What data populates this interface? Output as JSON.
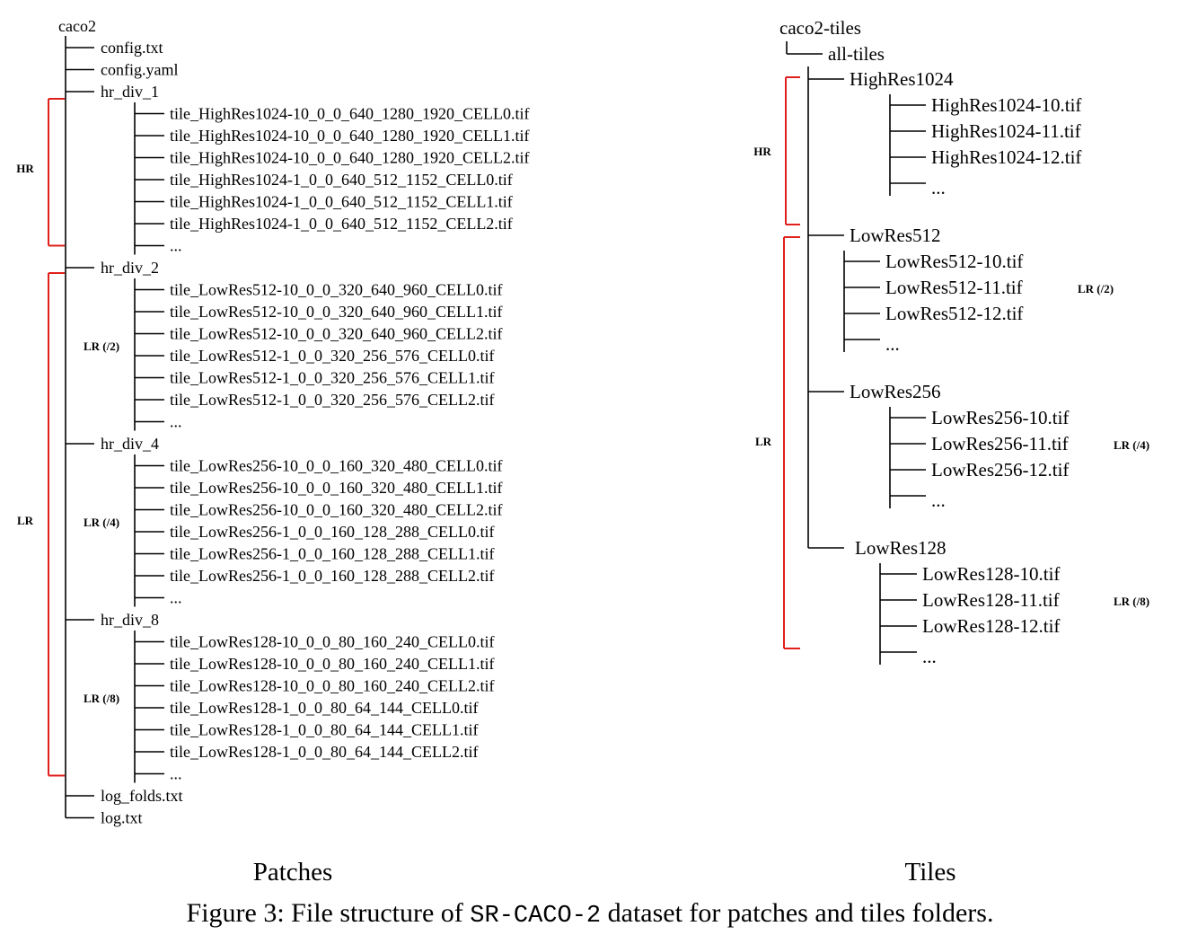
{
  "patches": {
    "root": "caco2",
    "items": [
      {
        "name": "config.txt",
        "type": "file"
      },
      {
        "name": "config.yaml",
        "type": "file"
      },
      {
        "name": "hr_div_1",
        "type": "folder",
        "children": [
          "tile_HighRes1024-10_0_0_640_1280_1920_CELL0.tif",
          "tile_HighRes1024-10_0_0_640_1280_1920_CELL1.tif",
          "tile_HighRes1024-10_0_0_640_1280_1920_CELL2.tif",
          "tile_HighRes1024-1_0_0_640_512_1152_CELL0.tif",
          "tile_HighRes1024-1_0_0_640_512_1152_CELL1.tif",
          "tile_HighRes1024-1_0_0_640_512_1152_CELL2.tif",
          "..."
        ]
      },
      {
        "name": "hr_div_2",
        "type": "folder",
        "label": "LR (/2)",
        "children": [
          "tile_LowRes512-10_0_0_320_640_960_CELL0.tif",
          "tile_LowRes512-10_0_0_320_640_960_CELL1.tif",
          "tile_LowRes512-10_0_0_320_640_960_CELL2.tif",
          "tile_LowRes512-1_0_0_320_256_576_CELL0.tif",
          "tile_LowRes512-1_0_0_320_256_576_CELL1.tif",
          "tile_LowRes512-1_0_0_320_256_576_CELL2.tif",
          "..."
        ]
      },
      {
        "name": "hr_div_4",
        "type": "folder",
        "label": "LR (/4)",
        "children": [
          "tile_LowRes256-10_0_0_160_320_480_CELL0.tif",
          "tile_LowRes256-10_0_0_160_320_480_CELL1.tif",
          "tile_LowRes256-10_0_0_160_320_480_CELL2.tif",
          "tile_LowRes256-1_0_0_160_128_288_CELL0.tif",
          "tile_LowRes256-1_0_0_160_128_288_CELL1.tif",
          "tile_LowRes256-1_0_0_160_128_288_CELL2.tif",
          "..."
        ]
      },
      {
        "name": "hr_div_8",
        "type": "folder",
        "label": "LR (/8)",
        "children": [
          "tile_LowRes128-10_0_0_80_160_240_CELL0.tif",
          "tile_LowRes128-10_0_0_80_160_240_CELL1.tif",
          "tile_LowRes128-10_0_0_80_160_240_CELL2.tif",
          "tile_LowRes128-1_0_0_80_64_144_CELL0.tif",
          "tile_LowRes128-1_0_0_80_64_144_CELL1.tif",
          "tile_LowRes128-1_0_0_80_64_144_CELL2.tif",
          "..."
        ]
      },
      {
        "name": "log_folds.txt",
        "type": "file"
      },
      {
        "name": "log.txt",
        "type": "file"
      }
    ],
    "hr_bracket_label": "HR",
    "lr_bracket_label": "LR",
    "caption": "Patches"
  },
  "tiles": {
    "root": "caco2-tiles",
    "subroot": "all-tiles",
    "folders": [
      {
        "name": "HighRes1024",
        "children": [
          "HighRes1024-10.tif",
          "HighRes1024-11.tif",
          "HighRes1024-12.tif",
          "..."
        ]
      },
      {
        "name": "LowRes512",
        "label": "LR (/2)",
        "children": [
          "LowRes512-10.tif",
          "LowRes512-11.tif",
          "LowRes512-12.tif",
          "..."
        ]
      },
      {
        "name": "LowRes256",
        "label": "LR (/4)",
        "children": [
          "LowRes256-10.tif",
          "LowRes256-11.tif",
          "LowRes256-12.tif",
          "..."
        ]
      },
      {
        "name": "LowRes128",
        "label": "LR (/8)",
        "children": [
          "LowRes128-10.tif",
          "LowRes128-11.tif",
          "LowRes128-12.tif",
          "..."
        ]
      }
    ],
    "hr_bracket_label": "HR",
    "lr_bracket_label": "LR",
    "caption": "Tiles"
  },
  "figure": {
    "prefix": "Figure 3: File structure of ",
    "dataset": "SR-CACO-2",
    "suffix": " dataset for patches and tiles folders."
  },
  "colors": {
    "bracket": "#e0201b",
    "line": "#000000"
  }
}
